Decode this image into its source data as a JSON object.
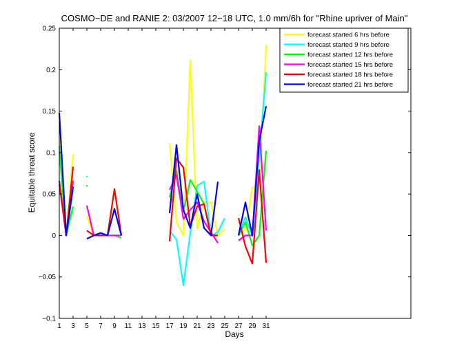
{
  "chart_data": {
    "type": "line",
    "title": "COSMO−DE and RANIE 2: 03/2007 12−18 UTC, 1.0 mm/6h for \"Rhine upriver of Main\"",
    "xlabel": "Days",
    "ylabel": "Equitable threat score",
    "xlim": [
      1,
      52
    ],
    "ylim": [
      -0.1,
      0.25
    ],
    "xticks": [
      1,
      3,
      5,
      7,
      9,
      11,
      13,
      15,
      17,
      19,
      21,
      23,
      25,
      27,
      29,
      31
    ],
    "yticks": [
      -0.1,
      -0.05,
      0,
      0.05,
      0.1,
      0.15,
      0.2,
      0.25
    ],
    "ytick_labels": [
      "−0.1",
      "−0.05",
      "0",
      "0.05",
      "0.1",
      "0.15",
      "0.2",
      "0.25"
    ],
    "grid": false,
    "legend_position": "top-right",
    "series": [
      {
        "name": "forecast started 6 hrs before",
        "color": "#ffff00",
        "values": [
          0.12,
          0.0,
          0.098,
          null,
          0.024,
          0.0,
          0.0,
          0.0,
          0.0,
          0.0,
          null,
          null,
          null,
          null,
          null,
          null,
          0.111,
          0.016,
          0.0,
          0.211,
          0.008,
          0.04,
          0.04,
          0.0,
          0.008,
          null,
          0.0,
          0.008,
          0.058,
          0.059,
          0.23
        ]
      },
      {
        "name": "forecast started 9 hrs before",
        "color": "#00ffff",
        "values": [
          0.102,
          0.0,
          0.055,
          null,
          0.071,
          null,
          null,
          null,
          null,
          null,
          null,
          null,
          null,
          null,
          null,
          null,
          0.006,
          -0.005,
          -0.06,
          0.003,
          0.06,
          0.065,
          0.0,
          0.004,
          0.021,
          null,
          0.0,
          0.022,
          0.0,
          0.096,
          0.197
        ]
      },
      {
        "name": "forecast started 12 hrs before",
        "color": "#00ff00",
        "values": [
          0.108,
          0.0,
          0.035,
          null,
          0.06,
          null,
          null,
          null,
          0.0,
          -0.003,
          null,
          null,
          null,
          null,
          null,
          null,
          0.046,
          0.078,
          0.029,
          0.067,
          0.053,
          0.038,
          0.0,
          0.0,
          null,
          null,
          0.0,
          0.016,
          -0.012,
          0.0,
          0.102
        ]
      },
      {
        "name": "forecast started 15 hrs before",
        "color": "#ff00ff",
        "values": [
          0.062,
          0.0,
          0.066,
          null,
          0.036,
          0.0,
          0.0,
          0.0,
          0.0,
          0.0,
          null,
          null,
          null,
          null,
          null,
          null,
          0.055,
          0.073,
          0.02,
          0.031,
          0.04,
          0.017,
          0.004,
          -0.009,
          null,
          null,
          -0.006,
          0.0,
          0.0,
          0.132,
          0.006
        ]
      },
      {
        "name": "forecast started 18 hrs before",
        "color": "#ff0000",
        "values": [
          0.066,
          0.0,
          0.083,
          null,
          0.006,
          0.0,
          0.0,
          0.0,
          0.056,
          0.0,
          null,
          null,
          null,
          null,
          null,
          null,
          -0.007,
          0.093,
          0.082,
          0.011,
          0.035,
          0.038,
          0.0,
          0.0,
          null,
          null,
          0.021,
          -0.013,
          -0.034,
          0.079,
          -0.033
        ]
      },
      {
        "name": "forecast started 21 hrs before",
        "color": "#0000ff",
        "values": [
          0.148,
          0.0,
          0.059,
          null,
          -0.004,
          0.0,
          0.003,
          0.0,
          0.032,
          0.0,
          null,
          null,
          null,
          null,
          null,
          null,
          0.027,
          0.109,
          0.031,
          0.009,
          0.05,
          0.009,
          0.0,
          0.065,
          null,
          null,
          0.0,
          0.04,
          0.0,
          0.114,
          0.156
        ]
      }
    ]
  }
}
